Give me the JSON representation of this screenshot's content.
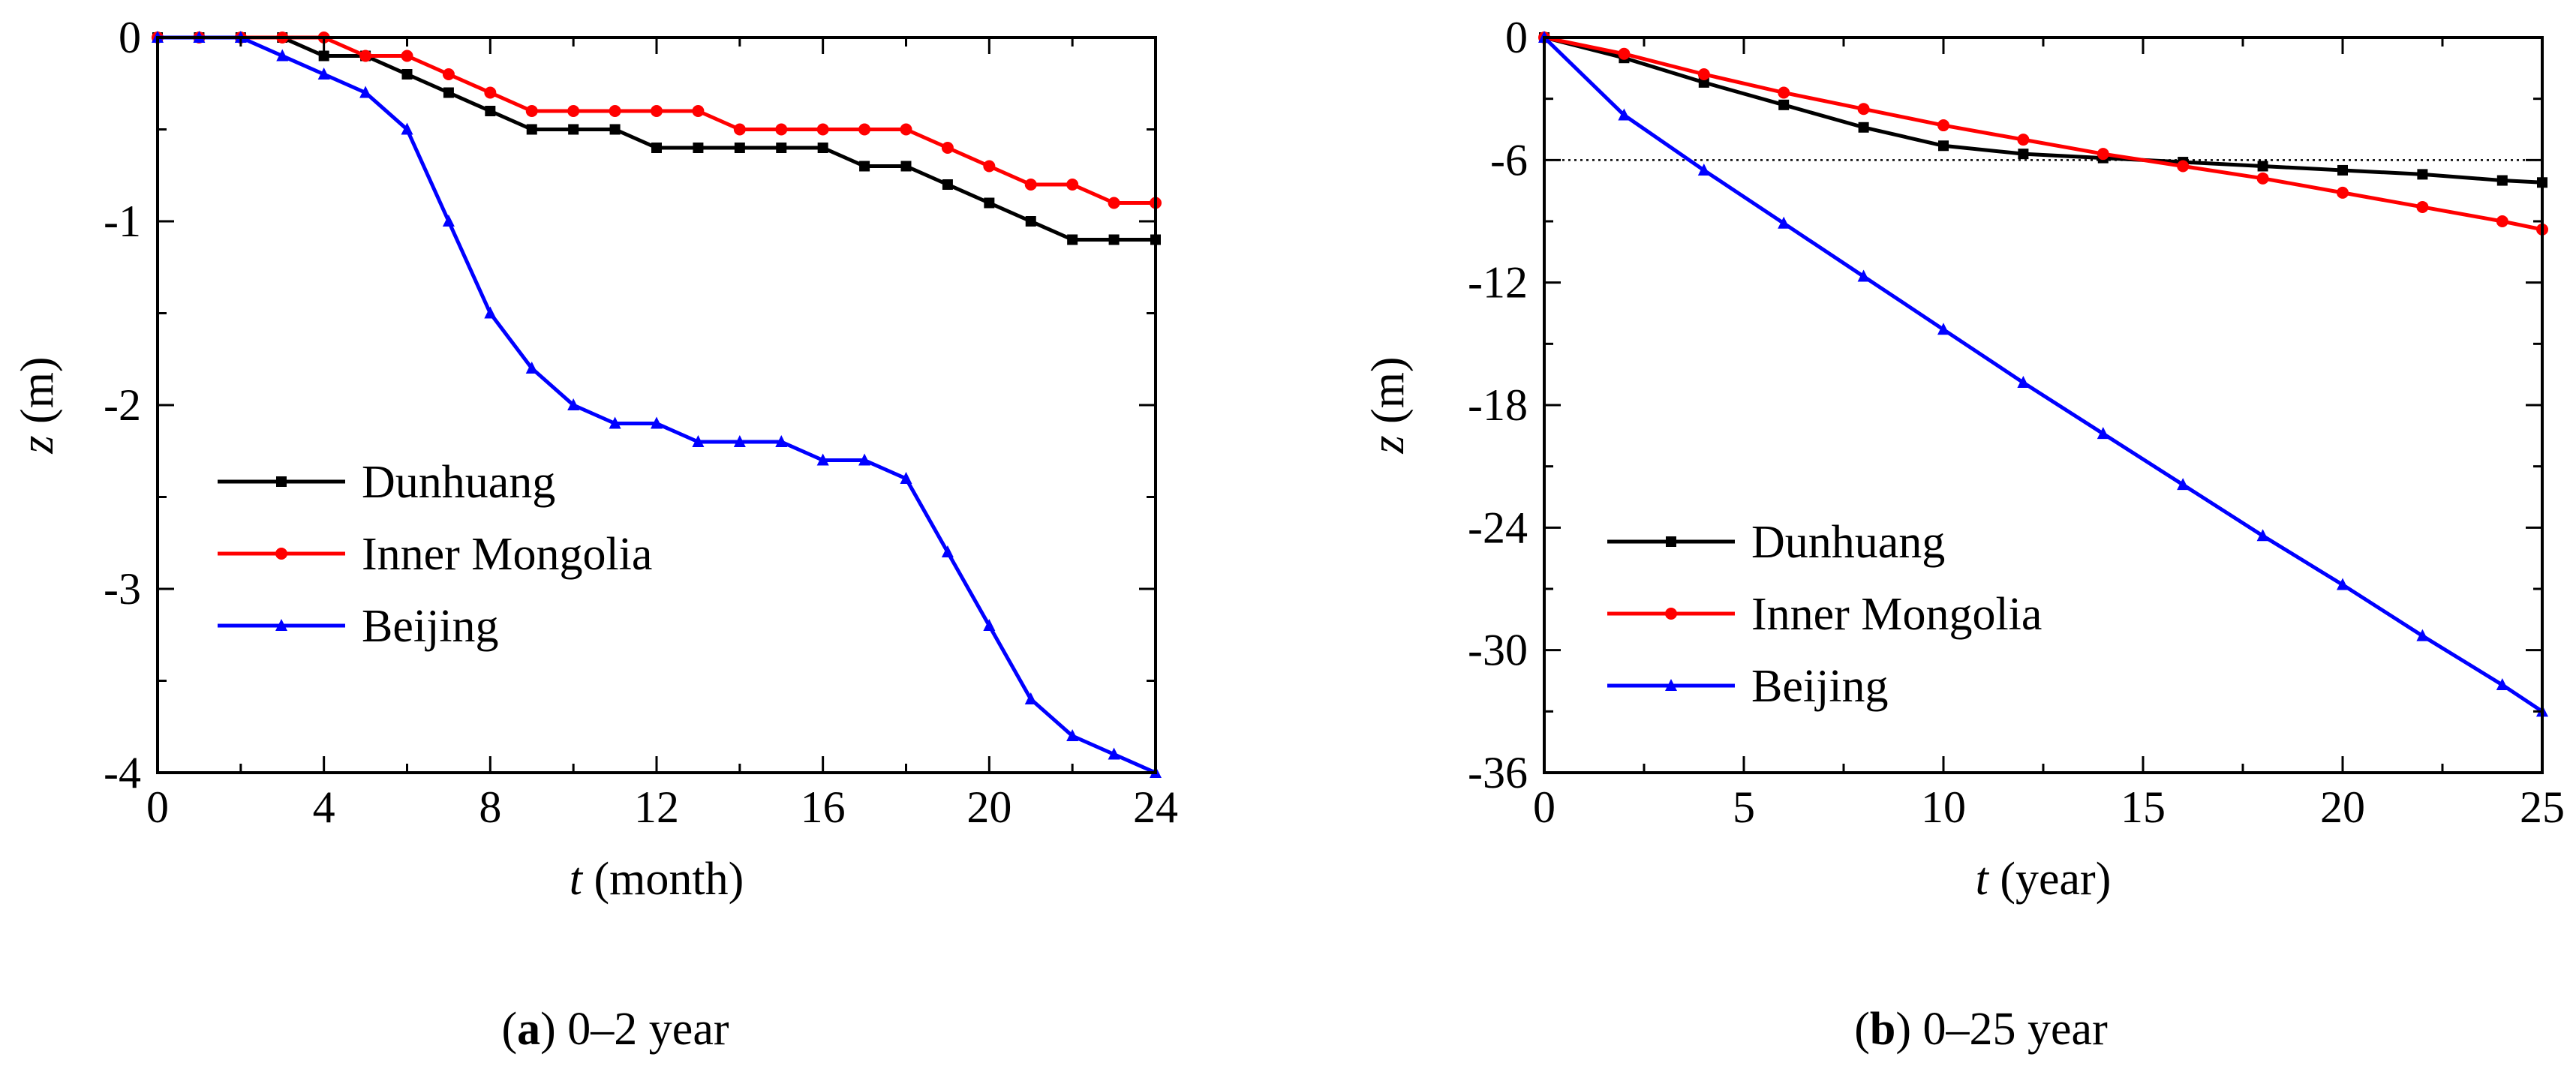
{
  "chart_data": [
    {
      "type": "line",
      "caption": {
        "letter": "a",
        "text": " 0–2 year"
      },
      "xlabel": {
        "var": "t",
        "unit": " (month)"
      },
      "ylabel": {
        "var": "z",
        "unit": " (m)"
      },
      "xlim": [
        0,
        24
      ],
      "ylim": [
        -4,
        0
      ],
      "xticks": [
        0,
        4,
        8,
        12,
        16,
        20,
        24
      ],
      "yticks": [
        0,
        -1,
        -2,
        -3,
        -4
      ],
      "legend": "middle-left",
      "series": [
        {
          "name": "Dunhuang",
          "color": "#000000",
          "marker": "square",
          "x": [
            0,
            1,
            2,
            3,
            4,
            5,
            6,
            7,
            8,
            9,
            10,
            11,
            12,
            13,
            14,
            15,
            16,
            17,
            18,
            19,
            20,
            21,
            22,
            23,
            24
          ],
          "y": [
            0,
            0,
            0,
            0,
            -0.1,
            -0.1,
            -0.2,
            -0.3,
            -0.4,
            -0.5,
            -0.5,
            -0.5,
            -0.6,
            -0.6,
            -0.6,
            -0.6,
            -0.6,
            -0.7,
            -0.7,
            -0.8,
            -0.9,
            -1.0,
            -1.1,
            -1.1,
            -1.1
          ]
        },
        {
          "name": "Inner Mongolia",
          "color": "#ff0000",
          "marker": "circle",
          "x": [
            0,
            1,
            2,
            3,
            4,
            5,
            6,
            7,
            8,
            9,
            10,
            11,
            12,
            13,
            14,
            15,
            16,
            17,
            18,
            19,
            20,
            21,
            22,
            23,
            24
          ],
          "y": [
            0,
            0,
            0,
            0,
            0,
            -0.1,
            -0.1,
            -0.2,
            -0.3,
            -0.4,
            -0.4,
            -0.4,
            -0.4,
            -0.4,
            -0.5,
            -0.5,
            -0.5,
            -0.5,
            -0.5,
            -0.6,
            -0.7,
            -0.8,
            -0.8,
            -0.9,
            -0.9
          ]
        },
        {
          "name": "Beijing",
          "color": "#0000ff",
          "marker": "triangle",
          "x": [
            0,
            1,
            2,
            3,
            4,
            5,
            6,
            7,
            8,
            9,
            10,
            11,
            12,
            13,
            14,
            15,
            16,
            17,
            18,
            19,
            20,
            21,
            22,
            23,
            24
          ],
          "y": [
            0,
            0,
            0,
            -0.1,
            -0.2,
            -0.3,
            -0.5,
            -1.0,
            -1.5,
            -1.8,
            -2.0,
            -2.1,
            -2.1,
            -2.2,
            -2.2,
            -2.2,
            -2.3,
            -2.3,
            -2.4,
            -2.8,
            -3.2,
            -3.6,
            -3.8,
            -3.9,
            -4.0
          ]
        }
      ]
    },
    {
      "type": "line",
      "caption": {
        "letter": "b",
        "text": " 0–25 year"
      },
      "xlabel": {
        "var": "t",
        "unit": " (year)"
      },
      "ylabel": {
        "var": "z",
        "unit": " (m)"
      },
      "xlim": [
        0,
        25
      ],
      "ylim": [
        -36,
        0
      ],
      "xticks": [
        0,
        5,
        10,
        15,
        20,
        25
      ],
      "yticks": [
        0,
        -6,
        -12,
        -18,
        -24,
        -30,
        -36
      ],
      "reference_line": {
        "y": -6,
        "style": "dotted"
      },
      "legend": "lower-left",
      "series": [
        {
          "name": "Dunhuang",
          "color": "#000000",
          "marker": "square",
          "x": [
            0,
            2,
            4,
            6,
            8,
            10,
            12,
            14,
            16,
            18,
            20,
            22,
            24,
            25
          ],
          "y": [
            0,
            -1.0,
            -2.2,
            -3.3,
            -4.4,
            -5.3,
            -5.7,
            -5.9,
            -6.1,
            -6.3,
            -6.5,
            -6.7,
            -7.0,
            -7.1
          ]
        },
        {
          "name": "Inner Mongolia",
          "color": "#ff0000",
          "marker": "circle",
          "x": [
            0,
            2,
            4,
            6,
            8,
            10,
            12,
            14,
            16,
            18,
            20,
            22,
            24,
            25
          ],
          "y": [
            0,
            -0.8,
            -1.8,
            -2.7,
            -3.5,
            -4.3,
            -5.0,
            -5.7,
            -6.3,
            -6.9,
            -7.6,
            -8.3,
            -9.0,
            -9.4
          ]
        },
        {
          "name": "Beijing",
          "color": "#0000ff",
          "marker": "triangle",
          "x": [
            0,
            2,
            4,
            6,
            8,
            10,
            12,
            14,
            16,
            18,
            20,
            22,
            24,
            25
          ],
          "y": [
            0,
            -3.8,
            -6.5,
            -9.1,
            -11.7,
            -14.3,
            -16.9,
            -19.4,
            -21.9,
            -24.4,
            -26.8,
            -29.3,
            -31.7,
            -33.0
          ]
        }
      ]
    }
  ]
}
